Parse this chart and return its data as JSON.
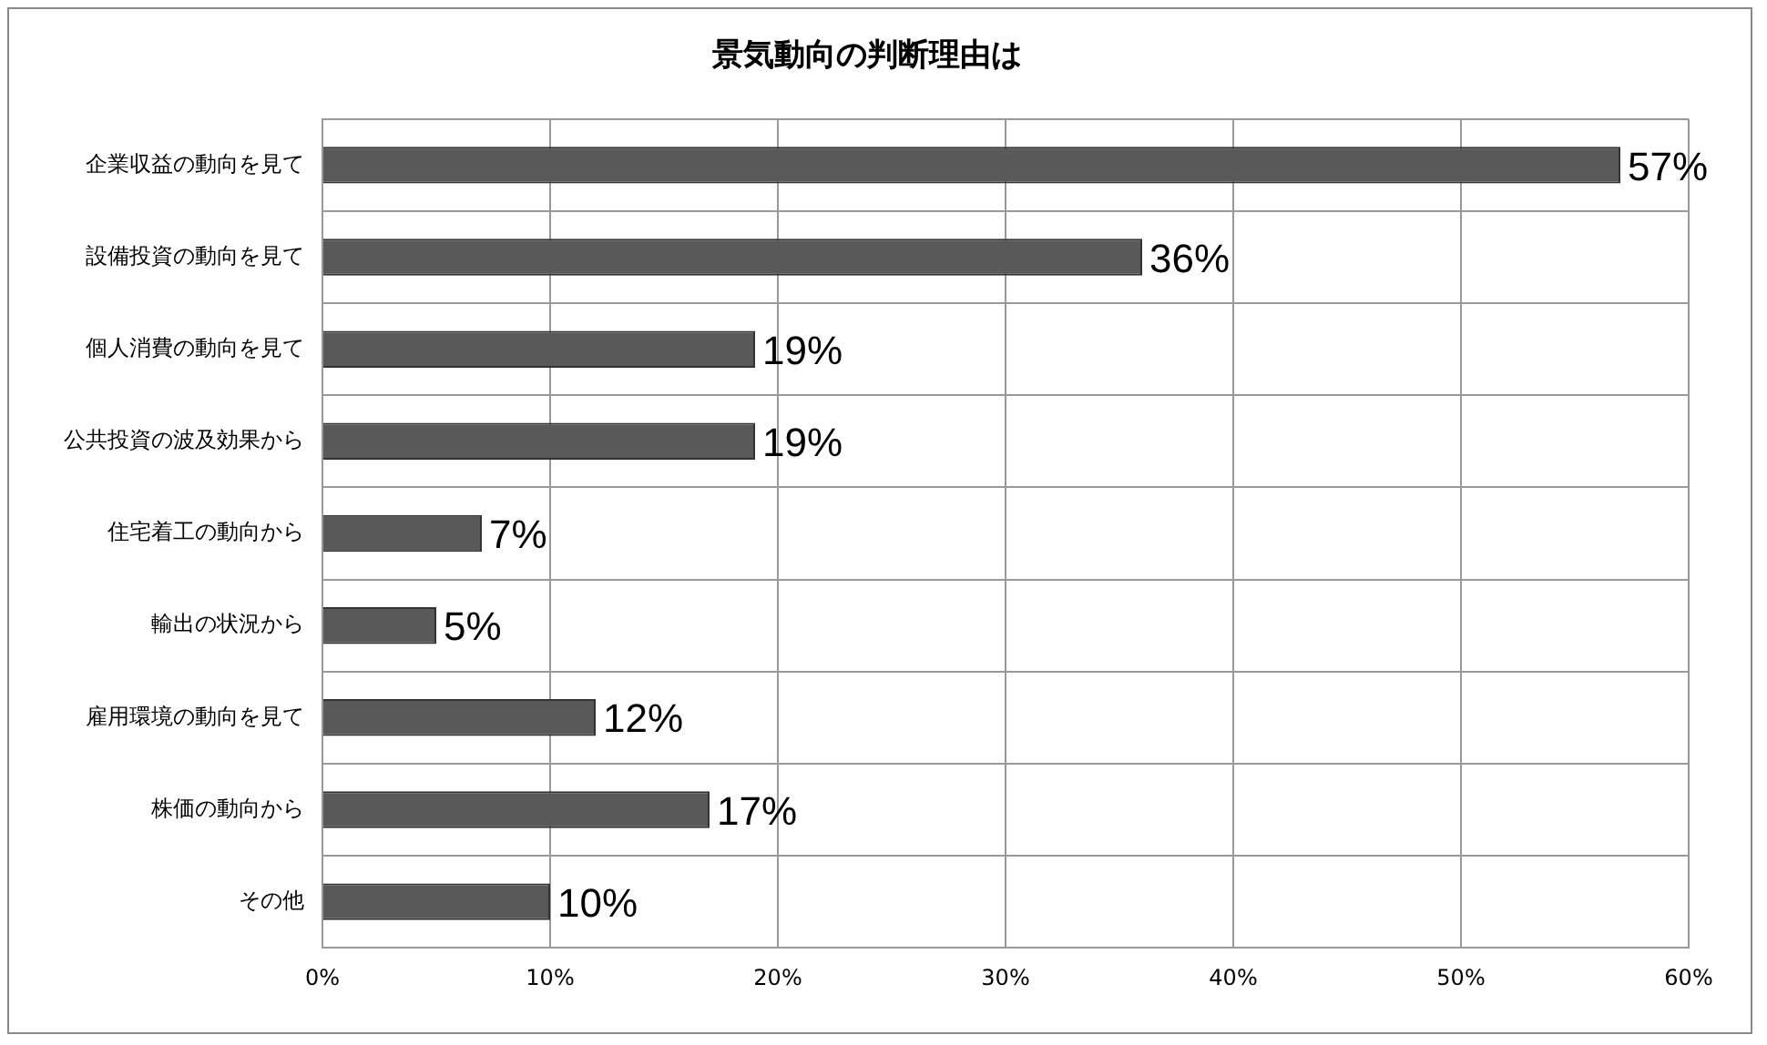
{
  "chart_data": {
    "type": "bar",
    "orientation": "horizontal",
    "title": "景気動向の判断理由は",
    "categories": [
      "企業収益の動向を見て",
      "設備投資の動向を見て",
      "個人消費の動向を見て",
      "公共投資の波及効果から",
      "住宅着工の動向から",
      "輸出の状況から",
      "雇用環境の動向を見て",
      "株価の動向から",
      "その他"
    ],
    "values": [
      57,
      36,
      19,
      19,
      7,
      5,
      12,
      17,
      10
    ],
    "value_labels": [
      "57%",
      "36%",
      "19%",
      "19%",
      "7%",
      "5%",
      "12%",
      "17%",
      "10%"
    ],
    "color": "#595959",
    "xlim": [
      0,
      60
    ],
    "xticks": [
      {
        "value": 0,
        "label": "0%"
      },
      {
        "value": 10,
        "label": "10%"
      },
      {
        "value": 20,
        "label": "20%"
      },
      {
        "value": 30,
        "label": "30%"
      },
      {
        "value": 40,
        "label": "40%"
      },
      {
        "value": 50,
        "label": "50%"
      },
      {
        "value": 60,
        "label": "60%"
      }
    ],
    "grid": true,
    "legend": false
  }
}
